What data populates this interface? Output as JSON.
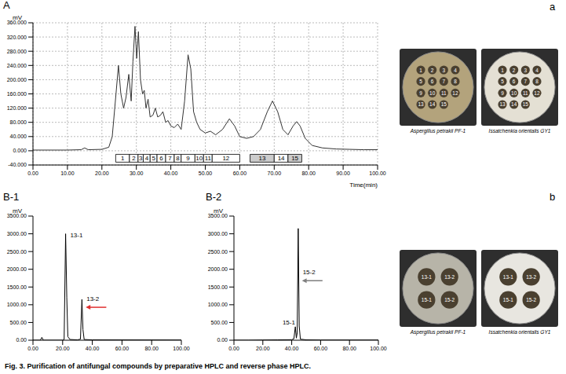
{
  "chart_data": [
    {
      "panel": "A",
      "type": "line",
      "ylabel": "mV",
      "xlabel": "Time(min)",
      "color": "#333333",
      "x": [
        0,
        10,
        14,
        15,
        16,
        20,
        22,
        23,
        24,
        24.8,
        25.5,
        26.3,
        27,
        27.8,
        28.5,
        29,
        29.6,
        30.1,
        30.6,
        31.2,
        31.8,
        32.3,
        32.8,
        33.4,
        34,
        34.8,
        35.5,
        36.2,
        37,
        37.7,
        38.5,
        39.2,
        40,
        41,
        42,
        43,
        44,
        45,
        45.8,
        46.6,
        47.5,
        48.5,
        50,
        51.5,
        53,
        55,
        57,
        58.5,
        60,
        62,
        64,
        66,
        68,
        69.5,
        71,
        72.5,
        74,
        75.5,
        76.5,
        77.5,
        79,
        81,
        84,
        88,
        92,
        96,
        100
      ],
      "values": [
        2,
        2,
        3,
        8,
        3,
        4,
        10,
        40,
        150,
        240,
        160,
        120,
        150,
        215,
        140,
        250,
        350,
        260,
        335,
        200,
        160,
        170,
        120,
        145,
        95,
        100,
        120,
        95,
        100,
        110,
        80,
        85,
        70,
        65,
        75,
        60,
        140,
        270,
        230,
        110,
        80,
        60,
        50,
        55,
        45,
        60,
        90,
        70,
        40,
        35,
        40,
        60,
        110,
        140,
        110,
        60,
        45,
        70,
        82,
        70,
        35,
        15,
        8,
        5,
        4,
        3,
        3
      ],
      "xlim": [
        0,
        100
      ],
      "xticks": [
        {
          "value": 0,
          "label": "0.00"
        },
        {
          "value": 10,
          "label": "10.00"
        },
        {
          "value": 20,
          "label": "20.00"
        },
        {
          "value": 30,
          "label": "30.00"
        },
        {
          "value": 40,
          "label": "40.00"
        },
        {
          "value": 50,
          "label": "50.00"
        },
        {
          "value": 60,
          "label": "60.00"
        },
        {
          "value": 70,
          "label": "70.00"
        },
        {
          "value": 80,
          "label": "80.00"
        },
        {
          "value": 90,
          "label": "90.00"
        },
        {
          "value": 100,
          "label": "100.00"
        }
      ],
      "ylim": [
        -40,
        360
      ],
      "yticks": [
        {
          "value": -40,
          "label": "-40.000"
        },
        {
          "value": 0,
          "label": "0.000"
        },
        {
          "value": 40,
          "label": "40.000"
        },
        {
          "value": 80,
          "label": "80.000"
        },
        {
          "value": 120,
          "label": "120.000"
        },
        {
          "value": 160,
          "label": "160.000"
        },
        {
          "value": 200,
          "label": "200.000"
        },
        {
          "value": 240,
          "label": "240.000"
        },
        {
          "value": 280,
          "label": "280.000"
        },
        {
          "value": 320,
          "label": "320.000"
        },
        {
          "value": 360,
          "label": "360.000"
        }
      ],
      "grid": true,
      "fractions": [
        {
          "label": "1",
          "start": 24,
          "end": 28,
          "color": "#ffffff"
        },
        {
          "label": "2",
          "start": 28,
          "end": 30.5,
          "color": "#ffffff"
        },
        {
          "label": "3",
          "start": 30.5,
          "end": 32,
          "color": "#ffffff"
        },
        {
          "label": "4",
          "start": 32,
          "end": 34,
          "color": "#ffffff"
        },
        {
          "label": "5",
          "start": 34,
          "end": 36,
          "color": "#ffffff"
        },
        {
          "label": "6",
          "start": 36,
          "end": 38.5,
          "color": "#ffffff"
        },
        {
          "label": "7",
          "start": 38.5,
          "end": 41,
          "color": "#ffffff"
        },
        {
          "label": "8",
          "start": 41,
          "end": 43,
          "color": "#ffffff"
        },
        {
          "label": "9",
          "start": 43,
          "end": 47,
          "color": "#ffffff"
        },
        {
          "label": "10",
          "start": 47,
          "end": 49.5,
          "color": "#ffffff"
        },
        {
          "label": "11",
          "start": 49.5,
          "end": 52,
          "color": "#ffffff"
        },
        {
          "label": "12",
          "start": 52,
          "end": 60,
          "color": "#ffffff"
        },
        {
          "label": "13",
          "start": 63,
          "end": 70,
          "color": "#cccccc"
        },
        {
          "label": "14",
          "start": 70,
          "end": 74,
          "color": "#ffffff"
        },
        {
          "label": "15",
          "start": 74,
          "end": 78,
          "color": "#cccccc"
        }
      ]
    },
    {
      "panel": "B-1",
      "type": "line",
      "ylabel": "mV",
      "color": "#000000",
      "x": [
        0,
        5,
        6,
        7,
        20,
        21,
        22,
        22.8,
        23.5,
        25,
        30,
        32,
        33,
        33.7,
        34.5,
        40,
        100
      ],
      "values": [
        0,
        0,
        80,
        0,
        0,
        20,
        3000,
        1200,
        100,
        20,
        10,
        30,
        1150,
        300,
        20,
        10,
        5
      ],
      "xlim": [
        0,
        100
      ],
      "xticks": [
        {
          "value": 0,
          "label": "0.00"
        },
        {
          "value": 20,
          "label": "20.00"
        },
        {
          "value": 40,
          "label": "40.00"
        },
        {
          "value": 60,
          "label": "60.00"
        },
        {
          "value": 80,
          "label": "80.00"
        },
        {
          "value": 100,
          "label": "100.00"
        }
      ],
      "ylim": [
        0,
        3500
      ],
      "yticks": [
        {
          "value": 0,
          "label": "0.00"
        },
        {
          "value": 500,
          "label": "500.00"
        },
        {
          "value": 1000,
          "label": "1000.00"
        },
        {
          "value": 1500,
          "label": "1500.00"
        },
        {
          "value": 2000,
          "label": "2000.00"
        },
        {
          "value": 2500,
          "label": "2500.00"
        },
        {
          "value": 3000,
          "label": "3000.00"
        },
        {
          "value": 3500,
          "label": "3500.00"
        }
      ],
      "grid": false,
      "annotations": [
        {
          "text": "13-1",
          "x": 23.5,
          "y": 2950
        },
        {
          "text": "13-2",
          "x": 34.5,
          "y": 1150,
          "marker": "arrow",
          "color": "#e03030"
        }
      ]
    },
    {
      "panel": "B-2",
      "type": "line",
      "ylabel": "mV",
      "color": "#000000",
      "x": [
        0,
        10,
        20,
        30,
        40,
        41.5,
        42.5,
        43.2,
        43.8,
        44.5,
        45.2,
        46,
        50,
        60,
        100
      ],
      "values": [
        0,
        0,
        5,
        10,
        15,
        40,
        380,
        60,
        200,
        3150,
        400,
        30,
        10,
        5,
        5
      ],
      "xlim": [
        0,
        100
      ],
      "xticks": [
        {
          "value": 0,
          "label": "0.00"
        },
        {
          "value": 20,
          "label": "20.00"
        },
        {
          "value": 40,
          "label": "40.00"
        },
        {
          "value": 60,
          "label": "60.00"
        },
        {
          "value": 80,
          "label": "80.00"
        },
        {
          "value": 100,
          "label": "100.00"
        }
      ],
      "ylim": [
        0,
        3500
      ],
      "yticks": [
        {
          "value": 0,
          "label": "0.00"
        },
        {
          "value": 500,
          "label": "500.00"
        },
        {
          "value": 1000,
          "label": "1000.00"
        },
        {
          "value": 1500,
          "label": "1500.00"
        },
        {
          "value": 2000,
          "label": "2000.00"
        },
        {
          "value": 2500,
          "label": "2500.00"
        },
        {
          "value": 3000,
          "label": "3000.00"
        },
        {
          "value": 3500,
          "label": "3500.00"
        }
      ],
      "grid": false,
      "annotations": [
        {
          "text": "15-1",
          "x": 32,
          "y": 500
        },
        {
          "text": "15-2",
          "x": 46,
          "y": 1900,
          "marker": "arrow",
          "color": "#808080"
        }
      ]
    }
  ],
  "photos": [
    {
      "panel": "a",
      "dishes": [
        {
          "caption": "Aspergillus petrakii PF-1",
          "color": "#b3a37c",
          "spots": [
            "1",
            "2",
            "3",
            "4",
            "5",
            "6",
            "7",
            "8",
            "9",
            "10",
            "11",
            "12",
            "13",
            "14",
            "15"
          ]
        },
        {
          "caption": "Issatchenkia orientalis GY1",
          "color": "#e4e0d4",
          "spots": [
            "1",
            "2",
            "3",
            "4",
            "5",
            "6",
            "7",
            "8",
            "9",
            "10",
            "11",
            "12",
            "13",
            "14",
            "15"
          ]
        }
      ]
    },
    {
      "panel": "b",
      "dishes": [
        {
          "caption": "Aspergillus petrakii PF-1",
          "color": "#b7b4a8",
          "spots": [
            "13-1",
            "13-2",
            "15-1",
            "15-2"
          ]
        },
        {
          "caption": "Issatchenkia orientalis GY1",
          "color": "#e8e6e0",
          "spots": [
            "13-1",
            "13-2",
            "15-1",
            "15-2"
          ]
        }
      ]
    }
  ],
  "caption": "Fig. 3. Purification of antifungal compounds by preparative HPLC and reverse phase HPLC."
}
